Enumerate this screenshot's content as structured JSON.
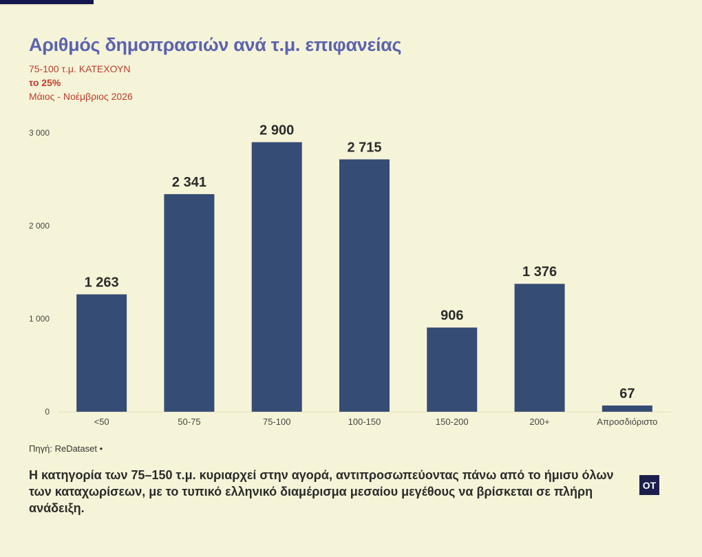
{
  "header": {
    "title": "Αριθμός δημοπρασιών ανά τ.μ. επιφανείας",
    "subtitle_1": "75-100 τ.μ. ΚΑΤΕΧΟΥΝ",
    "subtitle_2": "το 25%",
    "subtitle_3": "Μάιος - Νοέμβριος 2026"
  },
  "footer": {
    "source": "Πηγή: ReDataset •",
    "note": "Η κατηγορία των 75–150 τ.μ. κυριαρχεί στην αγορά, αντιπροσωπεύοντας πάνω από το ήμισυ όλων των καταχωρίσεων, με το τυπικό ελληνικό διαμέρισμα μεσαίου μεγέθους να βρίσκεται σε πλήρη ανάδειξη.",
    "logo_text": "OT"
  },
  "colors": {
    "bar": "#354c74",
    "title": "#5b63b0",
    "subtitle": "#c0392b",
    "background": "#f6f4d8"
  },
  "chart_data": {
    "type": "bar",
    "categories": [
      "<50",
      "50-75",
      "75-100",
      "100-150",
      "150-200",
      "200+",
      "Απροσδιόριστο"
    ],
    "values": [
      1263,
      2341,
      2900,
      2715,
      906,
      1376,
      67
    ],
    "value_labels": [
      "1 263",
      "2 341",
      "2 900",
      "2 715",
      "906",
      "1 376",
      "67"
    ],
    "yticks": [
      0,
      1000,
      2000,
      3000
    ],
    "ytick_labels": [
      "0",
      "1 000",
      "2 000",
      "3 000"
    ],
    "ylim": [
      0,
      3000
    ],
    "grid": false,
    "legend": "none"
  }
}
